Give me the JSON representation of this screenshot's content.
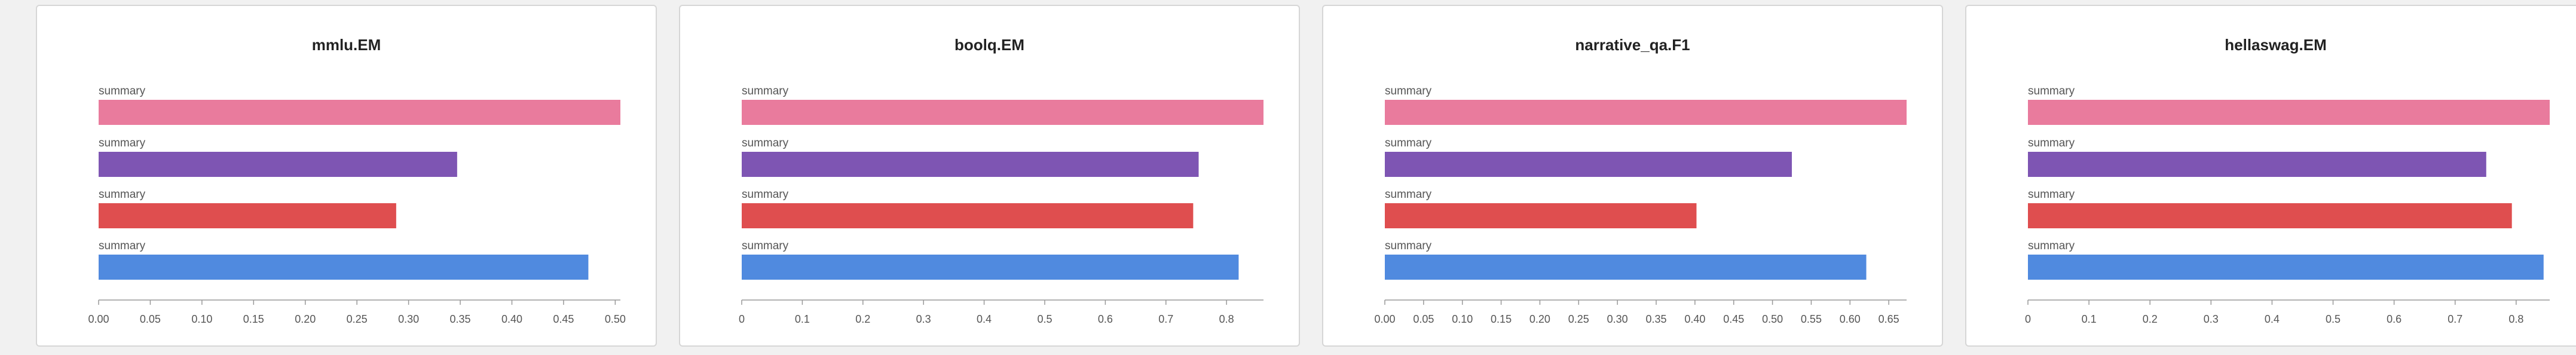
{
  "chart_data": [
    {
      "type": "bar",
      "title": "mmlu.EM",
      "orientation": "horizontal",
      "categories": [
        "summary",
        "summary",
        "summary",
        "summary"
      ],
      "values": [
        0.505,
        0.347,
        0.288,
        0.474
      ],
      "colors": [
        "#e97b9d",
        "#7e55b3",
        "#df4e4f",
        "#508adf"
      ],
      "xticks": [
        "0.00",
        "0.05",
        "0.10",
        "0.15",
        "0.20",
        "0.25",
        "0.30",
        "0.35",
        "0.40",
        "0.45",
        "0.50"
      ],
      "xlim": [
        0,
        0.505
      ]
    },
    {
      "type": "bar",
      "title": "boolq.EM",
      "orientation": "horizontal",
      "categories": [
        "summary",
        "summary",
        "summary",
        "summary"
      ],
      "values": [
        0.861,
        0.754,
        0.745,
        0.82
      ],
      "colors": [
        "#e97b9d",
        "#7e55b3",
        "#df4e4f",
        "#508adf"
      ],
      "xticks": [
        "0",
        "0.1",
        "0.2",
        "0.3",
        "0.4",
        "0.5",
        "0.6",
        "0.7",
        "0.8"
      ],
      "xlim": [
        0,
        0.861
      ]
    },
    {
      "type": "bar",
      "title": "narrative_qa.F1",
      "orientation": "horizontal",
      "categories": [
        "summary",
        "summary",
        "summary",
        "summary"
      ],
      "values": [
        0.673,
        0.525,
        0.402,
        0.621
      ],
      "colors": [
        "#e97b9d",
        "#7e55b3",
        "#df4e4f",
        "#508adf"
      ],
      "xticks": [
        "0.00",
        "0.05",
        "0.10",
        "0.15",
        "0.20",
        "0.25",
        "0.30",
        "0.35",
        "0.40",
        "0.45",
        "0.50",
        "0.55",
        "0.60",
        "0.65"
      ],
      "xlim": [
        0,
        0.673
      ]
    },
    {
      "type": "bar",
      "title": "hellaswag.EM",
      "orientation": "horizontal",
      "categories": [
        "summary",
        "summary",
        "summary",
        "summary"
      ],
      "values": [
        0.855,
        0.751,
        0.793,
        0.845
      ],
      "colors": [
        "#e97b9d",
        "#7e55b3",
        "#df4e4f",
        "#508adf"
      ],
      "xticks": [
        "0",
        "0.1",
        "0.2",
        "0.3",
        "0.4",
        "0.5",
        "0.6",
        "0.7",
        "0.8"
      ],
      "xlim": [
        0,
        0.855
      ]
    }
  ]
}
